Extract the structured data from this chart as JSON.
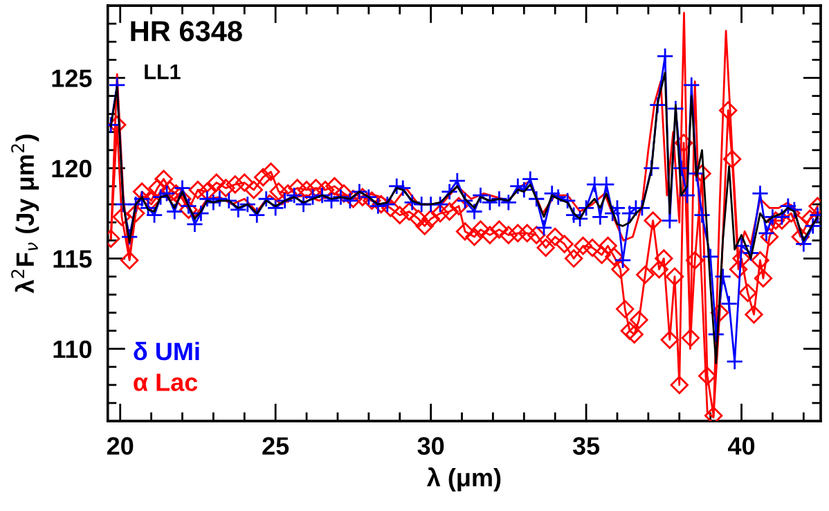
{
  "chart_data": {
    "type": "line",
    "title": "HR 6348",
    "subtitle": "LL1",
    "xlabel": "λ (μm)",
    "ylabel": "λ$^{2}$F$_{ν}$ (Jy μm$^{2}$)",
    "xlim": [
      19.6,
      42.55
    ],
    "ylim": [
      106,
      129
    ],
    "xticks": [
      {
        "value": 20,
        "label": "20"
      },
      {
        "value": 21,
        "label": null
      },
      {
        "value": 22,
        "label": null
      },
      {
        "value": 23,
        "label": null
      },
      {
        "value": 24,
        "label": null
      },
      {
        "value": 25,
        "label": "25"
      },
      {
        "value": 26,
        "label": null
      },
      {
        "value": 27,
        "label": null
      },
      {
        "value": 28,
        "label": null
      },
      {
        "value": 29,
        "label": null
      },
      {
        "value": 30,
        "label": "30"
      },
      {
        "value": 31,
        "label": null
      },
      {
        "value": 32,
        "label": null
      },
      {
        "value": 33,
        "label": null
      },
      {
        "value": 34,
        "label": null
      },
      {
        "value": 35,
        "label": "35"
      },
      {
        "value": 36,
        "label": null
      },
      {
        "value": 37,
        "label": null
      },
      {
        "value": 38,
        "label": null
      },
      {
        "value": 39,
        "label": null
      },
      {
        "value": 40,
        "label": "40"
      },
      {
        "value": 41,
        "label": null
      },
      {
        "value": 42,
        "label": null
      }
    ],
    "yticks": [
      {
        "value": 107,
        "label": null
      },
      {
        "value": 108,
        "label": null
      },
      {
        "value": 109,
        "label": null
      },
      {
        "value": 110,
        "label": "110"
      },
      {
        "value": 111,
        "label": null
      },
      {
        "value": 112,
        "label": null
      },
      {
        "value": 113,
        "label": null
      },
      {
        "value": 114,
        "label": null
      },
      {
        "value": 115,
        "label": "115"
      },
      {
        "value": 116,
        "label": null
      },
      {
        "value": 117,
        "label": null
      },
      {
        "value": 118,
        "label": null
      },
      {
        "value": 119,
        "label": null
      },
      {
        "value": 120,
        "label": "120"
      },
      {
        "value": 121,
        "label": null
      },
      {
        "value": 122,
        "label": null
      },
      {
        "value": 123,
        "label": null
      },
      {
        "value": 124,
        "label": null
      },
      {
        "value": 125,
        "label": "125"
      },
      {
        "value": 126,
        "label": null
      },
      {
        "value": 127,
        "label": null
      },
      {
        "value": 128,
        "label": null
      }
    ],
    "grid": false,
    "legend": "bottom left",
    "series": [
      {
        "color": "#ff0000",
        "marker": "none",
        "x": [
          19.7,
          19.9,
          20.1,
          20.3,
          20.5,
          20.7,
          21.0,
          21.3,
          21.6,
          22.0,
          22.4,
          22.8,
          23.2,
          23.6,
          24.0,
          24.4,
          24.8,
          25.2,
          25.6,
          26.0,
          26.4,
          26.8,
          27.2,
          27.6,
          28.0,
          28.4,
          28.8,
          29.2,
          29.6,
          30.0,
          30.4,
          30.85,
          31.3,
          31.7,
          32.1,
          32.5,
          32.9,
          33.2,
          33.6,
          34.0,
          34.4,
          34.8,
          35.2,
          35.6,
          35.9,
          36.2,
          36.5,
          36.8,
          37.0,
          37.2,
          37.4,
          37.6,
          37.8,
          38.0,
          38.15,
          38.35,
          38.5,
          38.7,
          38.9,
          39.1,
          39.3,
          39.5,
          39.7,
          39.9,
          40.1,
          40.3,
          40.6,
          40.9,
          41.2,
          41.5,
          41.8,
          42.1,
          42.45
        ],
        "values": [
          116.1,
          125.2,
          118.5,
          115.0,
          118.0,
          118.5,
          118.0,
          118.7,
          118.2,
          118.5,
          117.3,
          118.3,
          118.4,
          118.0,
          118.3,
          117.6,
          118.5,
          118.0,
          118.4,
          118.5,
          118.2,
          118.6,
          118.5,
          118.3,
          118.6,
          118.4,
          118.0,
          118.9,
          118.0,
          118.0,
          118.1,
          119.0,
          118.3,
          118.6,
          118.4,
          118.2,
          119.0,
          119.3,
          117.5,
          118.5,
          118.5,
          117.6,
          118.0,
          118.6,
          117.2,
          116.0,
          116.2,
          118.0,
          121.0,
          123.6,
          124.8,
          118.5,
          122.0,
          117.0,
          128.6,
          110.0,
          124.8,
          114.5,
          106.5,
          106.2,
          118.0,
          127.6,
          121.0,
          115.0,
          116.5,
          115.8,
          118.3,
          117.8,
          117.8,
          118.1,
          117.4,
          117.0,
          117.6
        ]
      },
      {
        "name": "α Lac",
        "color": "#ff0000",
        "marker": "diamond",
        "x": [
          19.7,
          19.9,
          20.05,
          20.3,
          20.5,
          20.7,
          21.0,
          21.2,
          21.4,
          21.6,
          21.8,
          22.0,
          22.2,
          22.5,
          22.8,
          23.1,
          23.4,
          23.7,
          24.0,
          24.3,
          24.6,
          24.85,
          25.1,
          25.4,
          25.7,
          26.0,
          26.3,
          26.6,
          26.9,
          27.2,
          27.5,
          27.8,
          28.1,
          28.4,
          28.7,
          29.0,
          29.3,
          29.6,
          29.8,
          30.0,
          30.3,
          30.6,
          30.9,
          31.1,
          31.4,
          31.6,
          31.9,
          32.2,
          32.5,
          32.8,
          33.1,
          33.4,
          33.7,
          34.0,
          34.3,
          34.6,
          34.9,
          35.2,
          35.5,
          35.7,
          35.9,
          36.1,
          36.25,
          36.4,
          36.55,
          36.7,
          36.9,
          37.15,
          37.35,
          37.5,
          37.69,
          37.85,
          38.0,
          38.14,
          38.36,
          38.5,
          38.73,
          38.9,
          39.1,
          39.3,
          39.57,
          39.7,
          39.9,
          40.0,
          40.2,
          40.4,
          40.6,
          40.7,
          40.9,
          41.1,
          41.3,
          41.6,
          41.9,
          42.2,
          42.45
        ],
        "values": [
          116.1,
          122.4,
          117.3,
          114.9,
          117.5,
          118.7,
          118.2,
          118.9,
          119.4,
          118.8,
          118.6,
          118.3,
          117.7,
          118.8,
          118.7,
          119.2,
          118.9,
          119.1,
          119.2,
          118.8,
          119.5,
          119.8,
          118.7,
          118.6,
          118.9,
          118.8,
          118.9,
          118.8,
          119.0,
          118.6,
          118.3,
          118.4,
          118.2,
          118.0,
          117.8,
          117.4,
          117.6,
          117.2,
          116.8,
          117.2,
          117.5,
          117.6,
          117.9,
          116.5,
          116.2,
          116.6,
          116.3,
          116.6,
          116.3,
          116.4,
          116.4,
          116.3,
          115.6,
          116.2,
          115.8,
          115.0,
          115.7,
          115.6,
          115.2,
          115.7,
          115.1,
          114.4,
          112.2,
          111.0,
          110.8,
          111.6,
          114.1,
          117.1,
          114.4,
          115.0,
          110.5,
          114.0,
          108.0,
          121.4,
          110.6,
          114.9,
          119.7,
          108.5,
          106.3,
          112.0,
          123.2,
          120.5,
          114.4,
          115.0,
          113.1,
          111.9,
          114.9,
          113.9,
          116.2,
          117.1,
          117.1,
          117.5,
          116.2,
          117.2,
          117.9
        ]
      },
      {
        "name": "δ UMi",
        "color": "#0000ff",
        "marker": "cross",
        "x": [
          19.7,
          19.9,
          20.1,
          20.3,
          20.5,
          20.7,
          20.9,
          21.1,
          21.3,
          21.5,
          21.75,
          22.0,
          22.2,
          22.4,
          22.6,
          22.8,
          23.0,
          23.2,
          23.5,
          23.8,
          24.1,
          24.4,
          24.7,
          25.0,
          25.3,
          25.6,
          25.9,
          26.2,
          26.5,
          26.8,
          27.1,
          27.4,
          27.7,
          28.0,
          28.3,
          28.6,
          28.9,
          29.1,
          29.4,
          29.7,
          30.0,
          30.3,
          30.6,
          30.85,
          31.1,
          31.4,
          31.6,
          31.9,
          32.2,
          32.5,
          32.8,
          33.0,
          33.2,
          33.4,
          33.64,
          33.9,
          34.1,
          34.4,
          34.6,
          34.8,
          35.0,
          35.27,
          35.45,
          35.65,
          35.85,
          36.0,
          36.18,
          36.4,
          36.6,
          36.8,
          37.1,
          37.3,
          37.54,
          37.69,
          37.88,
          38.06,
          38.25,
          38.39,
          38.55,
          38.73,
          39.0,
          39.18,
          39.4,
          39.6,
          39.78,
          40.0,
          40.3,
          40.6,
          40.8,
          41.0,
          41.3,
          41.5,
          41.7,
          42.0,
          42.3,
          42.45
        ],
        "values": [
          122.4,
          124.6,
          118.0,
          116.2,
          118.0,
          118.3,
          117.8,
          117.4,
          118.4,
          118.6,
          117.6,
          118.9,
          117.9,
          116.9,
          117.5,
          118.3,
          118.1,
          118.3,
          118.2,
          117.7,
          118.0,
          117.4,
          118.3,
          117.8,
          118.2,
          118.5,
          118.0,
          118.4,
          118.5,
          118.2,
          118.4,
          118.2,
          118.7,
          118.4,
          117.9,
          118.0,
          119.0,
          118.9,
          118.1,
          118.0,
          118.0,
          118.0,
          118.7,
          119.3,
          118.2,
          117.6,
          118.5,
          118.1,
          118.3,
          118.1,
          119.0,
          118.8,
          119.4,
          118.3,
          116.7,
          118.6,
          118.4,
          118.2,
          117.4,
          117.2,
          117.8,
          119.1,
          117.3,
          119.1,
          117.5,
          117.8,
          114.9,
          117.5,
          117.8,
          117.8,
          120.0,
          123.5,
          126.2,
          117.1,
          123.3,
          120.0,
          118.5,
          124.6,
          119.7,
          117.4,
          115.1,
          110.8,
          114.0,
          112.5,
          109.3,
          115.7,
          115.3,
          118.6,
          116.4,
          117.3,
          117.3,
          117.9,
          117.7,
          115.8,
          116.8,
          117.4
        ]
      },
      {
        "color": "#000000",
        "marker": "none",
        "x": [
          19.7,
          19.9,
          20.1,
          20.3,
          20.5,
          20.7,
          20.9,
          21.1,
          21.3,
          21.5,
          21.75,
          22.0,
          22.2,
          22.4,
          22.6,
          22.8,
          23.0,
          23.2,
          23.5,
          23.8,
          24.1,
          24.4,
          24.7,
          25.0,
          25.3,
          25.6,
          25.9,
          26.2,
          26.5,
          26.8,
          27.1,
          27.4,
          27.7,
          28.0,
          28.3,
          28.6,
          28.9,
          29.1,
          29.4,
          29.7,
          30.0,
          30.3,
          30.6,
          30.85,
          31.1,
          31.4,
          31.6,
          31.9,
          32.2,
          32.5,
          32.8,
          33.0,
          33.2,
          33.4,
          33.64,
          33.9,
          34.1,
          34.4,
          34.6,
          34.8,
          35.0,
          35.27,
          35.45,
          35.65,
          35.85,
          36.0,
          36.18,
          36.4,
          36.6,
          36.8,
          37.1,
          37.3,
          37.54,
          37.69,
          37.88,
          38.06,
          38.25,
          38.39,
          38.55,
          38.73,
          39.0,
          39.18,
          39.4,
          39.6,
          39.78,
          40.0,
          40.3,
          40.6,
          40.8,
          41.0,
          41.3,
          41.5,
          41.7,
          42.0,
          42.3,
          42.45
        ],
        "values": [
          122.3,
          124.5,
          118.0,
          115.9,
          118.0,
          118.4,
          117.7,
          117.6,
          118.4,
          118.5,
          117.8,
          118.7,
          117.9,
          117.2,
          117.6,
          118.2,
          118.1,
          118.2,
          118.2,
          117.8,
          118.0,
          117.5,
          118.2,
          117.9,
          118.2,
          118.4,
          118.1,
          118.3,
          118.5,
          118.3,
          118.4,
          118.3,
          118.7,
          118.4,
          118.0,
          118.1,
          118.9,
          118.8,
          118.2,
          118.0,
          118.0,
          118.1,
          118.6,
          119.0,
          118.3,
          117.8,
          118.4,
          118.2,
          118.3,
          118.2,
          118.8,
          118.7,
          119.1,
          118.3,
          117.3,
          118.5,
          118.3,
          118.1,
          117.5,
          117.2,
          117.8,
          118.3,
          117.8,
          118.6,
          117.6,
          116.9,
          116.8,
          117.0,
          117.5,
          117.8,
          119.9,
          123.6,
          125.3,
          117.5,
          123.5,
          118.5,
          119.0,
          124.0,
          119.5,
          121.0,
          113.5,
          109.2,
          116.0,
          120.1,
          115.5,
          116.3,
          115.0,
          117.5,
          117.0,
          117.3,
          117.5,
          117.8,
          117.6,
          116.0,
          116.9,
          117.3
        ]
      }
    ]
  }
}
